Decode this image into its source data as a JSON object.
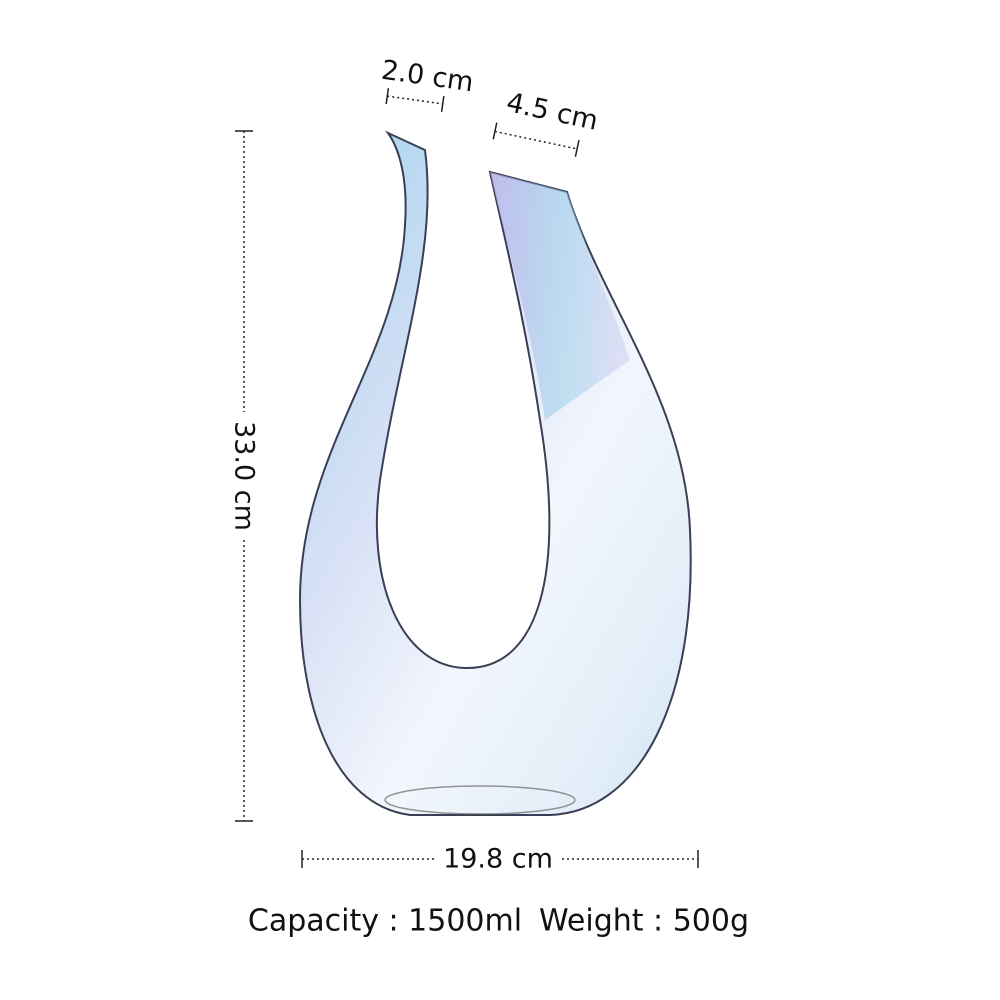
{
  "dimensions": {
    "top_left": "2.0 cm",
    "top_right": "4.5 cm",
    "height": "33.0 cm",
    "width": "19.8 cm"
  },
  "specs": {
    "capacity": "Capacity : 1500ml",
    "weight": "Weight : 500g"
  }
}
